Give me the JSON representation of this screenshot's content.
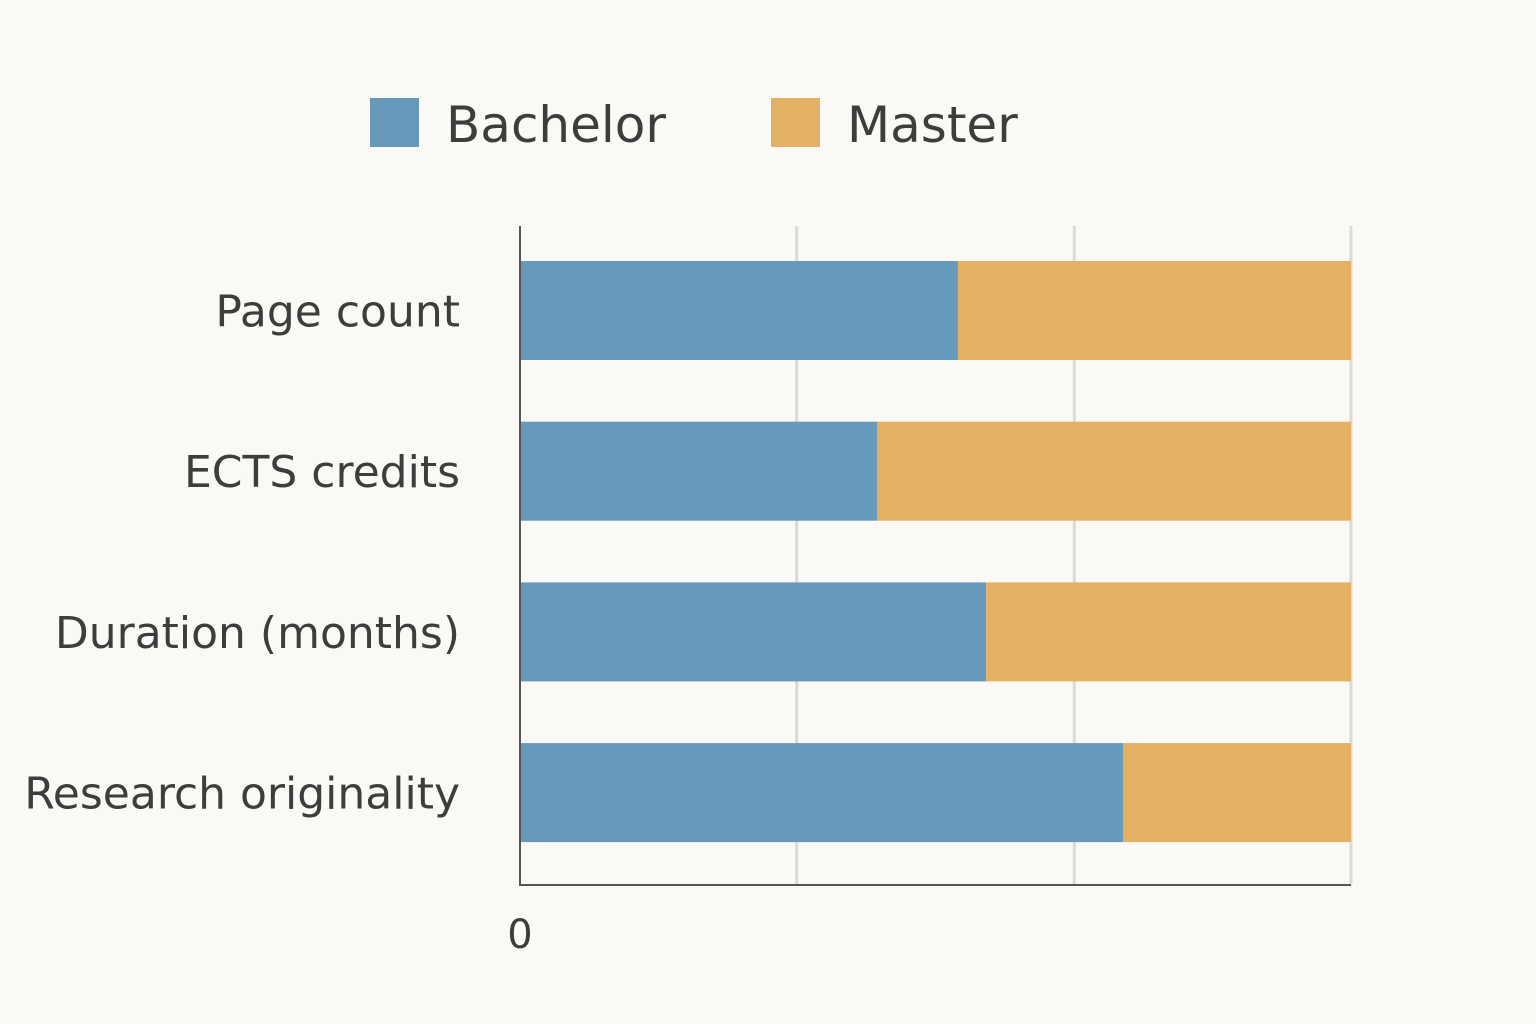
{
  "chart_data": {
    "type": "bar",
    "orientation": "horizontal",
    "stacked": true,
    "categories": [
      "Page count",
      "ECTS credits",
      "Duration (months)",
      "Research originality"
    ],
    "series": [
      {
        "name": "Bachelor",
        "color": "#6799ba",
        "values": [
          52.7,
          43.0,
          56.1,
          72.6
        ]
      },
      {
        "name": "Master",
        "color": "#e3b064",
        "values": [
          47.3,
          57.0,
          43.9,
          27.4
        ]
      }
    ],
    "xlim": [
      0,
      100
    ],
    "x_ticks": [
      0
    ],
    "gridlines": [
      33.3,
      66.7,
      100
    ],
    "grid": true,
    "legend": {
      "position": "top-center",
      "entries": [
        "Bachelor",
        "Master"
      ]
    }
  }
}
